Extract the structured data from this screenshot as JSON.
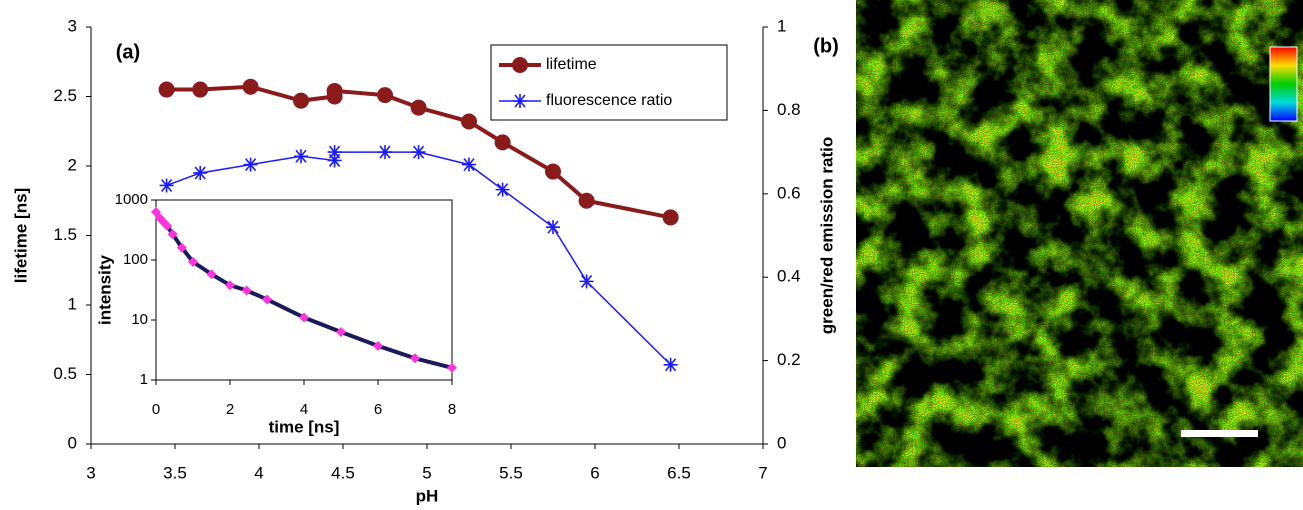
{
  "chart_data": [
    {
      "type": "line",
      "annotations": [
        "(a)"
      ],
      "xlabel": "pH",
      "ylabel": "lifetime [ns]",
      "y2label": "green/red emission ratio",
      "x": [
        3.45,
        3.65,
        3.95,
        4.25,
        4.45,
        4.45,
        4.75,
        4.95,
        5.25,
        5.45,
        5.75,
        5.95,
        6.45
      ],
      "series": [
        {
          "name": "lifetime",
          "color": "#8b1a1a",
          "marker": "circle",
          "values": [
            2.55,
            2.55,
            2.57,
            2.47,
            2.5,
            2.54,
            2.51,
            2.42,
            2.32,
            2.17,
            1.96,
            1.75,
            1.63
          ]
        },
        {
          "name": "fluorescence ratio",
          "color": "#1a1aff",
          "marker": "star",
          "axis": "y2",
          "values": [
            0.62,
            0.65,
            0.67,
            0.69,
            0.68,
            0.7,
            0.7,
            0.7,
            0.67,
            0.61,
            0.52,
            0.39,
            0.19
          ]
        }
      ],
      "xlim": [
        3,
        7
      ],
      "xticks": [
        3,
        3.5,
        4,
        4.5,
        5,
        5.5,
        6,
        6.5,
        7
      ],
      "ylim": [
        0,
        3
      ],
      "yticks": [
        0,
        0.5,
        1,
        1.5,
        2,
        2.5,
        3
      ],
      "y2lim": [
        0,
        1
      ],
      "y2ticks": [
        0,
        0.2,
        0.4,
        0.6,
        0.8,
        1
      ],
      "legend": "upper right",
      "grid": false
    },
    {
      "type": "line",
      "xlabel": "time [ns]",
      "ylabel": "intensity",
      "log_y": true,
      "x": [
        0,
        0.1,
        0.2,
        0.3,
        0.45,
        0.7,
        1,
        1.5,
        2,
        2.45,
        3,
        4,
        5,
        6,
        7,
        8
      ],
      "series": [
        {
          "color": "#ff33dd",
          "line_color": "#1a1a5e",
          "marker": "diamond",
          "values": [
            630,
            500,
            430,
            370,
            270,
            160,
            93,
            58,
            38,
            31,
            22,
            11,
            6.3,
            3.7,
            2.3,
            1.6
          ]
        }
      ],
      "xlim": [
        0,
        8
      ],
      "xticks": [
        0,
        2,
        4,
        6,
        8
      ],
      "ylim": [
        1,
        1000
      ],
      "yticks": [
        1,
        10,
        100,
        1000
      ],
      "grid": false
    }
  ],
  "image_panel": {
    "label": "(b)"
  }
}
